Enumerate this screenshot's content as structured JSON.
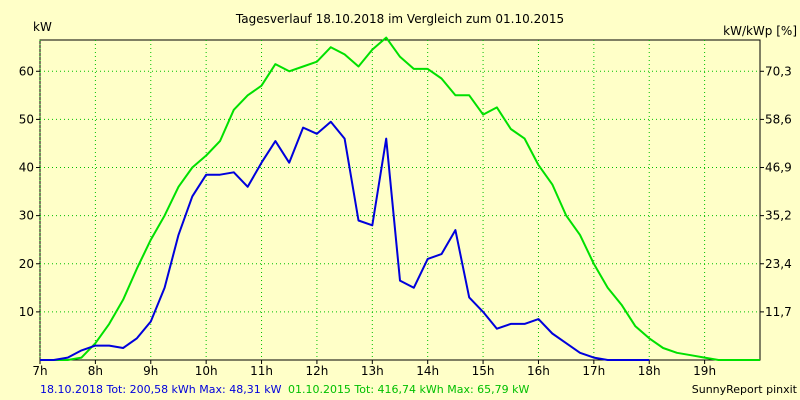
{
  "chart_data": {
    "type": "line",
    "title": "Tagesverlauf 18.10.2018 im Vergleich zum 01.10.2015",
    "ylabel_left": "kW",
    "ylabel_right": "kW/kWp [%]",
    "xlim": [
      7.0,
      20.0
    ],
    "ylim": [
      0,
      66.5
    ],
    "grid": true,
    "x_ticks": [
      {
        "value": 7,
        "label": "7h"
      },
      {
        "value": 8,
        "label": "8h"
      },
      {
        "value": 9,
        "label": "9h"
      },
      {
        "value": 10,
        "label": "10h"
      },
      {
        "value": 11,
        "label": "11h"
      },
      {
        "value": 12,
        "label": "12h"
      },
      {
        "value": 13,
        "label": "13h"
      },
      {
        "value": 14,
        "label": "14h"
      },
      {
        "value": 15,
        "label": "15h"
      },
      {
        "value": 16,
        "label": "16h"
      },
      {
        "value": 17,
        "label": "17h"
      },
      {
        "value": 18,
        "label": "18h"
      },
      {
        "value": 19,
        "label": "19h"
      }
    ],
    "y_ticks_left": [
      {
        "value": 10,
        "label": "10"
      },
      {
        "value": 20,
        "label": "20"
      },
      {
        "value": 30,
        "label": "30"
      },
      {
        "value": 40,
        "label": "40"
      },
      {
        "value": 50,
        "label": "50"
      },
      {
        "value": 60,
        "label": "60"
      }
    ],
    "y_ticks_right": [
      {
        "value": 10,
        "label": "11,7"
      },
      {
        "value": 20,
        "label": "23,4"
      },
      {
        "value": 30,
        "label": "35,2"
      },
      {
        "value": 40,
        "label": "46,9"
      },
      {
        "value": 50,
        "label": "58,6"
      },
      {
        "value": 60,
        "label": "70,3"
      }
    ],
    "series": [
      {
        "color": "#00E000",
        "x": [
          7.0,
          7.25,
          7.5,
          7.75,
          8.0,
          8.25,
          8.5,
          8.75,
          9.0,
          9.25,
          9.5,
          9.75,
          10.0,
          10.25,
          10.5,
          10.75,
          11.0,
          11.25,
          11.5,
          11.75,
          12.0,
          12.25,
          12.5,
          12.75,
          13.0,
          13.25,
          13.5,
          13.75,
          14.0,
          14.25,
          14.5,
          14.75,
          15.0,
          15.25,
          15.5,
          15.75,
          16.0,
          16.25,
          16.5,
          16.75,
          17.0,
          17.25,
          17.5,
          17.75,
          18.0,
          18.25,
          18.5,
          18.75,
          19.0,
          19.25,
          19.5,
          19.75,
          20.0
        ],
        "values": [
          0,
          0,
          0,
          0.5,
          3.5,
          7.5,
          12.5,
          19,
          25,
          30,
          36,
          40,
          42.5,
          45.5,
          52,
          55,
          57,
          61.5,
          60,
          61,
          62,
          65,
          63.5,
          61,
          64.5,
          67,
          63,
          60.5,
          60.5,
          58.5,
          55,
          55,
          51,
          52.5,
          48,
          46,
          40.5,
          36.5,
          30,
          26,
          20,
          15,
          11.5,
          7,
          4.5,
          2.5,
          1.5,
          1,
          0.5,
          0,
          0,
          0,
          0
        ]
      },
      {
        "color": "#0000DC",
        "x": [
          7.0,
          7.25,
          7.5,
          7.75,
          8.0,
          8.25,
          8.5,
          8.75,
          9.0,
          9.25,
          9.5,
          9.75,
          10.0,
          10.25,
          10.5,
          10.75,
          11.0,
          11.25,
          11.5,
          11.75,
          12.0,
          12.25,
          12.5,
          12.75,
          13.0,
          13.25,
          13.5,
          13.75,
          14.0,
          14.25,
          14.5,
          14.75,
          15.0,
          15.25,
          15.5,
          15.75,
          16.0,
          16.25,
          16.5,
          16.75,
          17.0,
          17.25,
          17.5,
          17.75,
          18.0
        ],
        "values": [
          0,
          0,
          0.5,
          2,
          3,
          3,
          2.5,
          4.5,
          8,
          15,
          26,
          34,
          38.5,
          38.5,
          39,
          36,
          41,
          45.5,
          41,
          48.3,
          47,
          49.5,
          46,
          29,
          28,
          46,
          16.5,
          15,
          21,
          22,
          27,
          13,
          10,
          6.5,
          7.5,
          7.5,
          8.5,
          5.5,
          3.5,
          1.5,
          0.5,
          0,
          0,
          0,
          0
        ]
      }
    ],
    "footer": {
      "text_blue": "18.10.2018 Tot: 200,58 kWh Max: 48,31 kW",
      "text_green": "01.10.2015 Tot: 416,74 kWh Max: 65,79 kW",
      "credit": "SunnyReport pinxit"
    }
  }
}
